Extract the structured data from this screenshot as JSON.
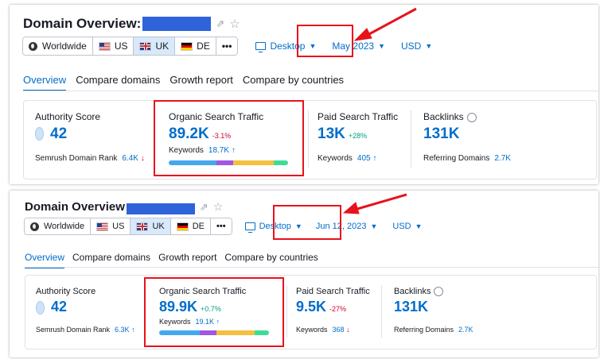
{
  "colors": {
    "accent": "#006dca",
    "negative": "#d1002f",
    "positive": "#009f81",
    "highlight": "#e8121b",
    "redaction": "#2f63d9",
    "bar_segments": [
      "#45a8ef",
      "#9f57e4",
      "#f4c041",
      "#3ddc97"
    ]
  },
  "top": {
    "title": "Domain Overview:",
    "icons": [
      "external-link-icon",
      "star-icon"
    ],
    "databases": {
      "worldwide": "Worldwide",
      "us": "US",
      "uk": "UK",
      "de": "DE",
      "more": "•••"
    },
    "device": "Desktop",
    "date": "May 2023",
    "currency": "USD",
    "tabs": [
      "Overview",
      "Compare domains",
      "Growth report",
      "Compare by countries"
    ],
    "authority": {
      "label": "Authority Score",
      "value": "42",
      "rank_label": "Semrush Domain Rank",
      "rank_value": "6.4K",
      "rank_arrow": "↓"
    },
    "organic": {
      "label": "Organic Search Traffic",
      "value": "89.2K",
      "delta": "-3.1%",
      "kw_label": "Keywords",
      "kw_value": "18.7K",
      "kw_arrow": "↑",
      "bar": [
        0.4,
        0.14,
        0.34,
        0.12
      ]
    },
    "paid": {
      "label": "Paid Search Traffic",
      "value": "13K",
      "delta": "+28%",
      "kw_label": "Keywords",
      "kw_value": "405",
      "kw_arrow": "↑"
    },
    "backlinks": {
      "label": "Backlinks",
      "value": "131K",
      "ref_label": "Referring Domains",
      "ref_value": "2.7K"
    }
  },
  "bottom": {
    "title": "Domain Overview",
    "icons": [
      "external-link-icon",
      "star-icon"
    ],
    "databases": {
      "worldwide": "Worldwide",
      "us": "US",
      "uk": "UK",
      "de": "DE",
      "more": "•••"
    },
    "device": "Desktop",
    "date": "Jun 12, 2023",
    "currency": "USD",
    "tabs": [
      "Overview",
      "Compare domains",
      "Growth report",
      "Compare by countries"
    ],
    "authority": {
      "label": "Authority Score",
      "value": "42",
      "rank_label": "Semrush Domain Rank",
      "rank_value": "6.3K",
      "rank_arrow": "↑"
    },
    "organic": {
      "label": "Organic Search Traffic",
      "value": "89.9K",
      "delta": "+0.7%",
      "kw_label": "Keywords",
      "kw_value": "19.1K",
      "kw_arrow": "↑",
      "bar": [
        0.37,
        0.15,
        0.35,
        0.13
      ]
    },
    "paid": {
      "label": "Paid Search Traffic",
      "value": "9.5K",
      "delta": "-27%",
      "kw_label": "Keywords",
      "kw_value": "368",
      "kw_arrow": "↓"
    },
    "backlinks": {
      "label": "Backlinks",
      "value": "131K",
      "ref_label": "Referring Domains",
      "ref_value": "2.7K"
    }
  }
}
